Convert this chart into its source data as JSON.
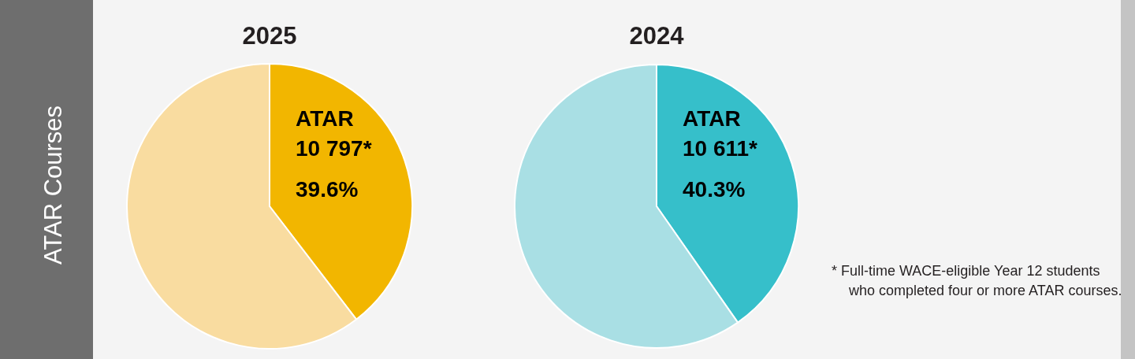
{
  "chart_data": [
    {
      "type": "other",
      "title": "ATAR Courses",
      "annotations": [
        "* Full-time WACE-eligible Year 12 students who completed four or more ATAR courses."
      ]
    },
    {
      "type": "pie",
      "title": "2025",
      "categories": [
        "ATAR",
        null
      ],
      "values": [
        39.6,
        60.4
      ],
      "colors": [
        "#f2b600",
        "#f9dca0"
      ],
      "value_labels": [
        "39.6%",
        null
      ],
      "annotations": [
        "10 797*"
      ],
      "legend": false
    },
    {
      "type": "pie",
      "title": "2024",
      "categories": [
        "ATAR",
        null
      ],
      "values": [
        40.3,
        59.7
      ],
      "colors": [
        "#36bfca",
        "#a9dfe4"
      ],
      "value_labels": [
        "40.3%",
        null
      ],
      "annotations": [
        "10 611*"
      ],
      "legend": false
    }
  ]
}
